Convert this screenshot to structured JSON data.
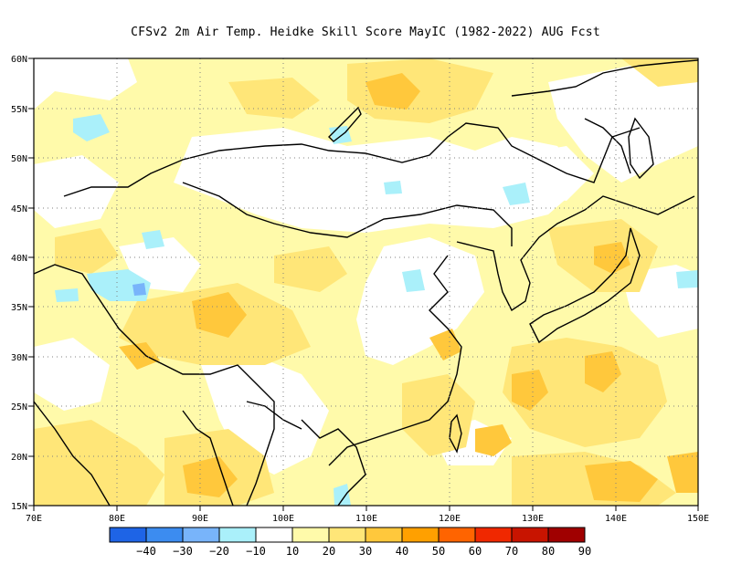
{
  "title": "CFSv2  2m Air Temp. Heidke Skill Score MayIC (1982-2022) AUG Fcst",
  "map": {
    "lon_range": [
      70,
      150
    ],
    "lat_range": [
      15,
      60
    ],
    "x_ticks": [
      "70E",
      "80E",
      "90E",
      "100E",
      "110E",
      "120E",
      "130E",
      "140E",
      "150E"
    ],
    "y_ticks": [
      "15N",
      "20N",
      "25N",
      "30N",
      "35N",
      "40N",
      "45N",
      "50N",
      "55N",
      "60N"
    ],
    "grid": "dotted"
  },
  "colorbar": {
    "labels": [
      "-40",
      "-30",
      "-20",
      "-10",
      "10",
      "20",
      "30",
      "40",
      "50",
      "60",
      "70",
      "80",
      "90"
    ],
    "colors": [
      "#1e64e6",
      "#3c8cf0",
      "#78b4fa",
      "#aaf0fa",
      "#ffffff",
      "#fffaaa",
      "#ffe678",
      "#ffc83c",
      "#ffa000",
      "#ff6400",
      "#f02800",
      "#c81400",
      "#a00000"
    ]
  },
  "palette": {
    "white": "#ffffff",
    "light_yellow": "#fffaaa",
    "yellow": "#ffe678",
    "orange_light": "#ffc83c",
    "orange": "#ffa000",
    "light_blue": "#aaf0fa",
    "blue": "#78b4fa"
  }
}
